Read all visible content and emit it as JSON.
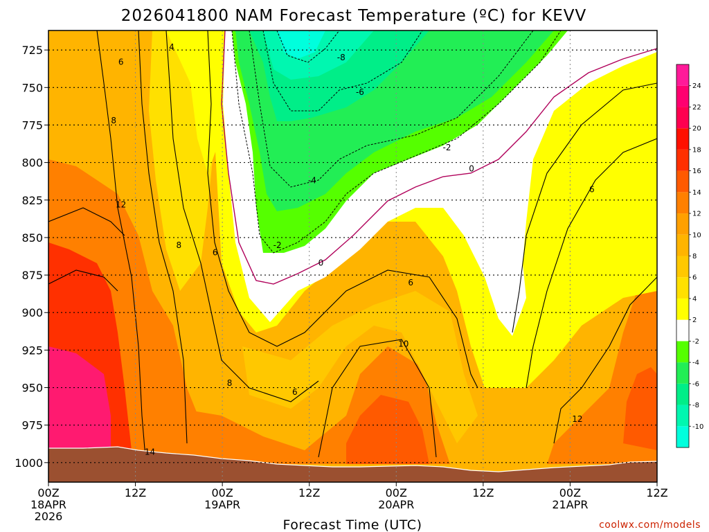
{
  "chart_data": {
    "type": "heatmap",
    "title": "2026041800 NAM Forecast Temperature (ºC) for KEVV",
    "xlabel": "Forecast Time (UTC)",
    "credit": "coolwx.com/models",
    "y_ticks": [
      "725",
      "750",
      "775",
      "800",
      "825",
      "850",
      "875",
      "900",
      "925",
      "950",
      "975",
      "1000"
    ],
    "y_range": [
      712,
      1013
    ],
    "x_ticks": [
      {
        "hour": 0,
        "lines": [
          "00Z",
          "18APR",
          "2026"
        ]
      },
      {
        "hour": 12,
        "lines": [
          "12Z"
        ]
      },
      {
        "hour": 24,
        "lines": [
          "00Z",
          "19APR"
        ]
      },
      {
        "hour": 36,
        "lines": [
          "12Z"
        ]
      },
      {
        "hour": 48,
        "lines": [
          "00Z",
          "20APR"
        ]
      },
      {
        "hour": 60,
        "lines": [
          "12Z"
        ]
      },
      {
        "hour": 72,
        "lines": [
          "00Z",
          "21APR"
        ]
      },
      {
        "hour": 84,
        "lines": [
          "12Z"
        ]
      }
    ],
    "x_range": [
      0,
      84
    ],
    "grid": true,
    "colorbar": {
      "placement": "right",
      "levels": [
        "-10",
        "-8",
        "-6",
        "-4",
        "-2",
        "2",
        "4",
        "6",
        "8",
        "10",
        "12",
        "14",
        "16",
        "18",
        "20",
        "22",
        "24"
      ],
      "colors": [
        "#00ffdd",
        "#00f7b0",
        "#00ee88",
        "#22ee55",
        "#55ff00",
        "#ffffff",
        "#ffff00",
        "#ffe000",
        "#ffc800",
        "#ffb400",
        "#ffa000",
        "#ff8000",
        "#ff5a00",
        "#ff3000",
        "#ff1000",
        "#ff0050",
        "#ff0070",
        "#ff1a99"
      ]
    },
    "contour_labels": [
      {
        "text": "-8",
        "hour": 40.4,
        "p": 730
      },
      {
        "text": "-6",
        "hour": 43.0,
        "p": 753
      },
      {
        "text": "-2",
        "hour": 55.0,
        "p": 790
      },
      {
        "text": "-4",
        "hour": 36.4,
        "p": 812
      },
      {
        "text": "-2",
        "hour": 31.6,
        "p": 855
      },
      {
        "text": "0",
        "hour": 37.6,
        "p": 867
      },
      {
        "text": "0",
        "hour": 58.4,
        "p": 804
      },
      {
        "text": "4",
        "hour": 17.0,
        "p": 723
      },
      {
        "text": "6",
        "hour": 10.0,
        "p": 733
      },
      {
        "text": "8",
        "hour": 9.0,
        "p": 772
      },
      {
        "text": "12",
        "hour": 10.0,
        "p": 828
      },
      {
        "text": "8",
        "hour": 18.0,
        "p": 855
      },
      {
        "text": "6",
        "hour": 23.0,
        "p": 860
      },
      {
        "text": "6",
        "hour": 50.0,
        "p": 880
      },
      {
        "text": "6",
        "hour": 75.0,
        "p": 818
      },
      {
        "text": "10",
        "hour": 49.0,
        "p": 921
      },
      {
        "text": "8",
        "hour": 25.0,
        "p": 947
      },
      {
        "text": "6",
        "hour": 34.0,
        "p": 953
      },
      {
        "text": "12",
        "hour": 73.0,
        "p": 971
      },
      {
        "text": "14",
        "hour": 14.0,
        "p": 993
      }
    ]
  }
}
